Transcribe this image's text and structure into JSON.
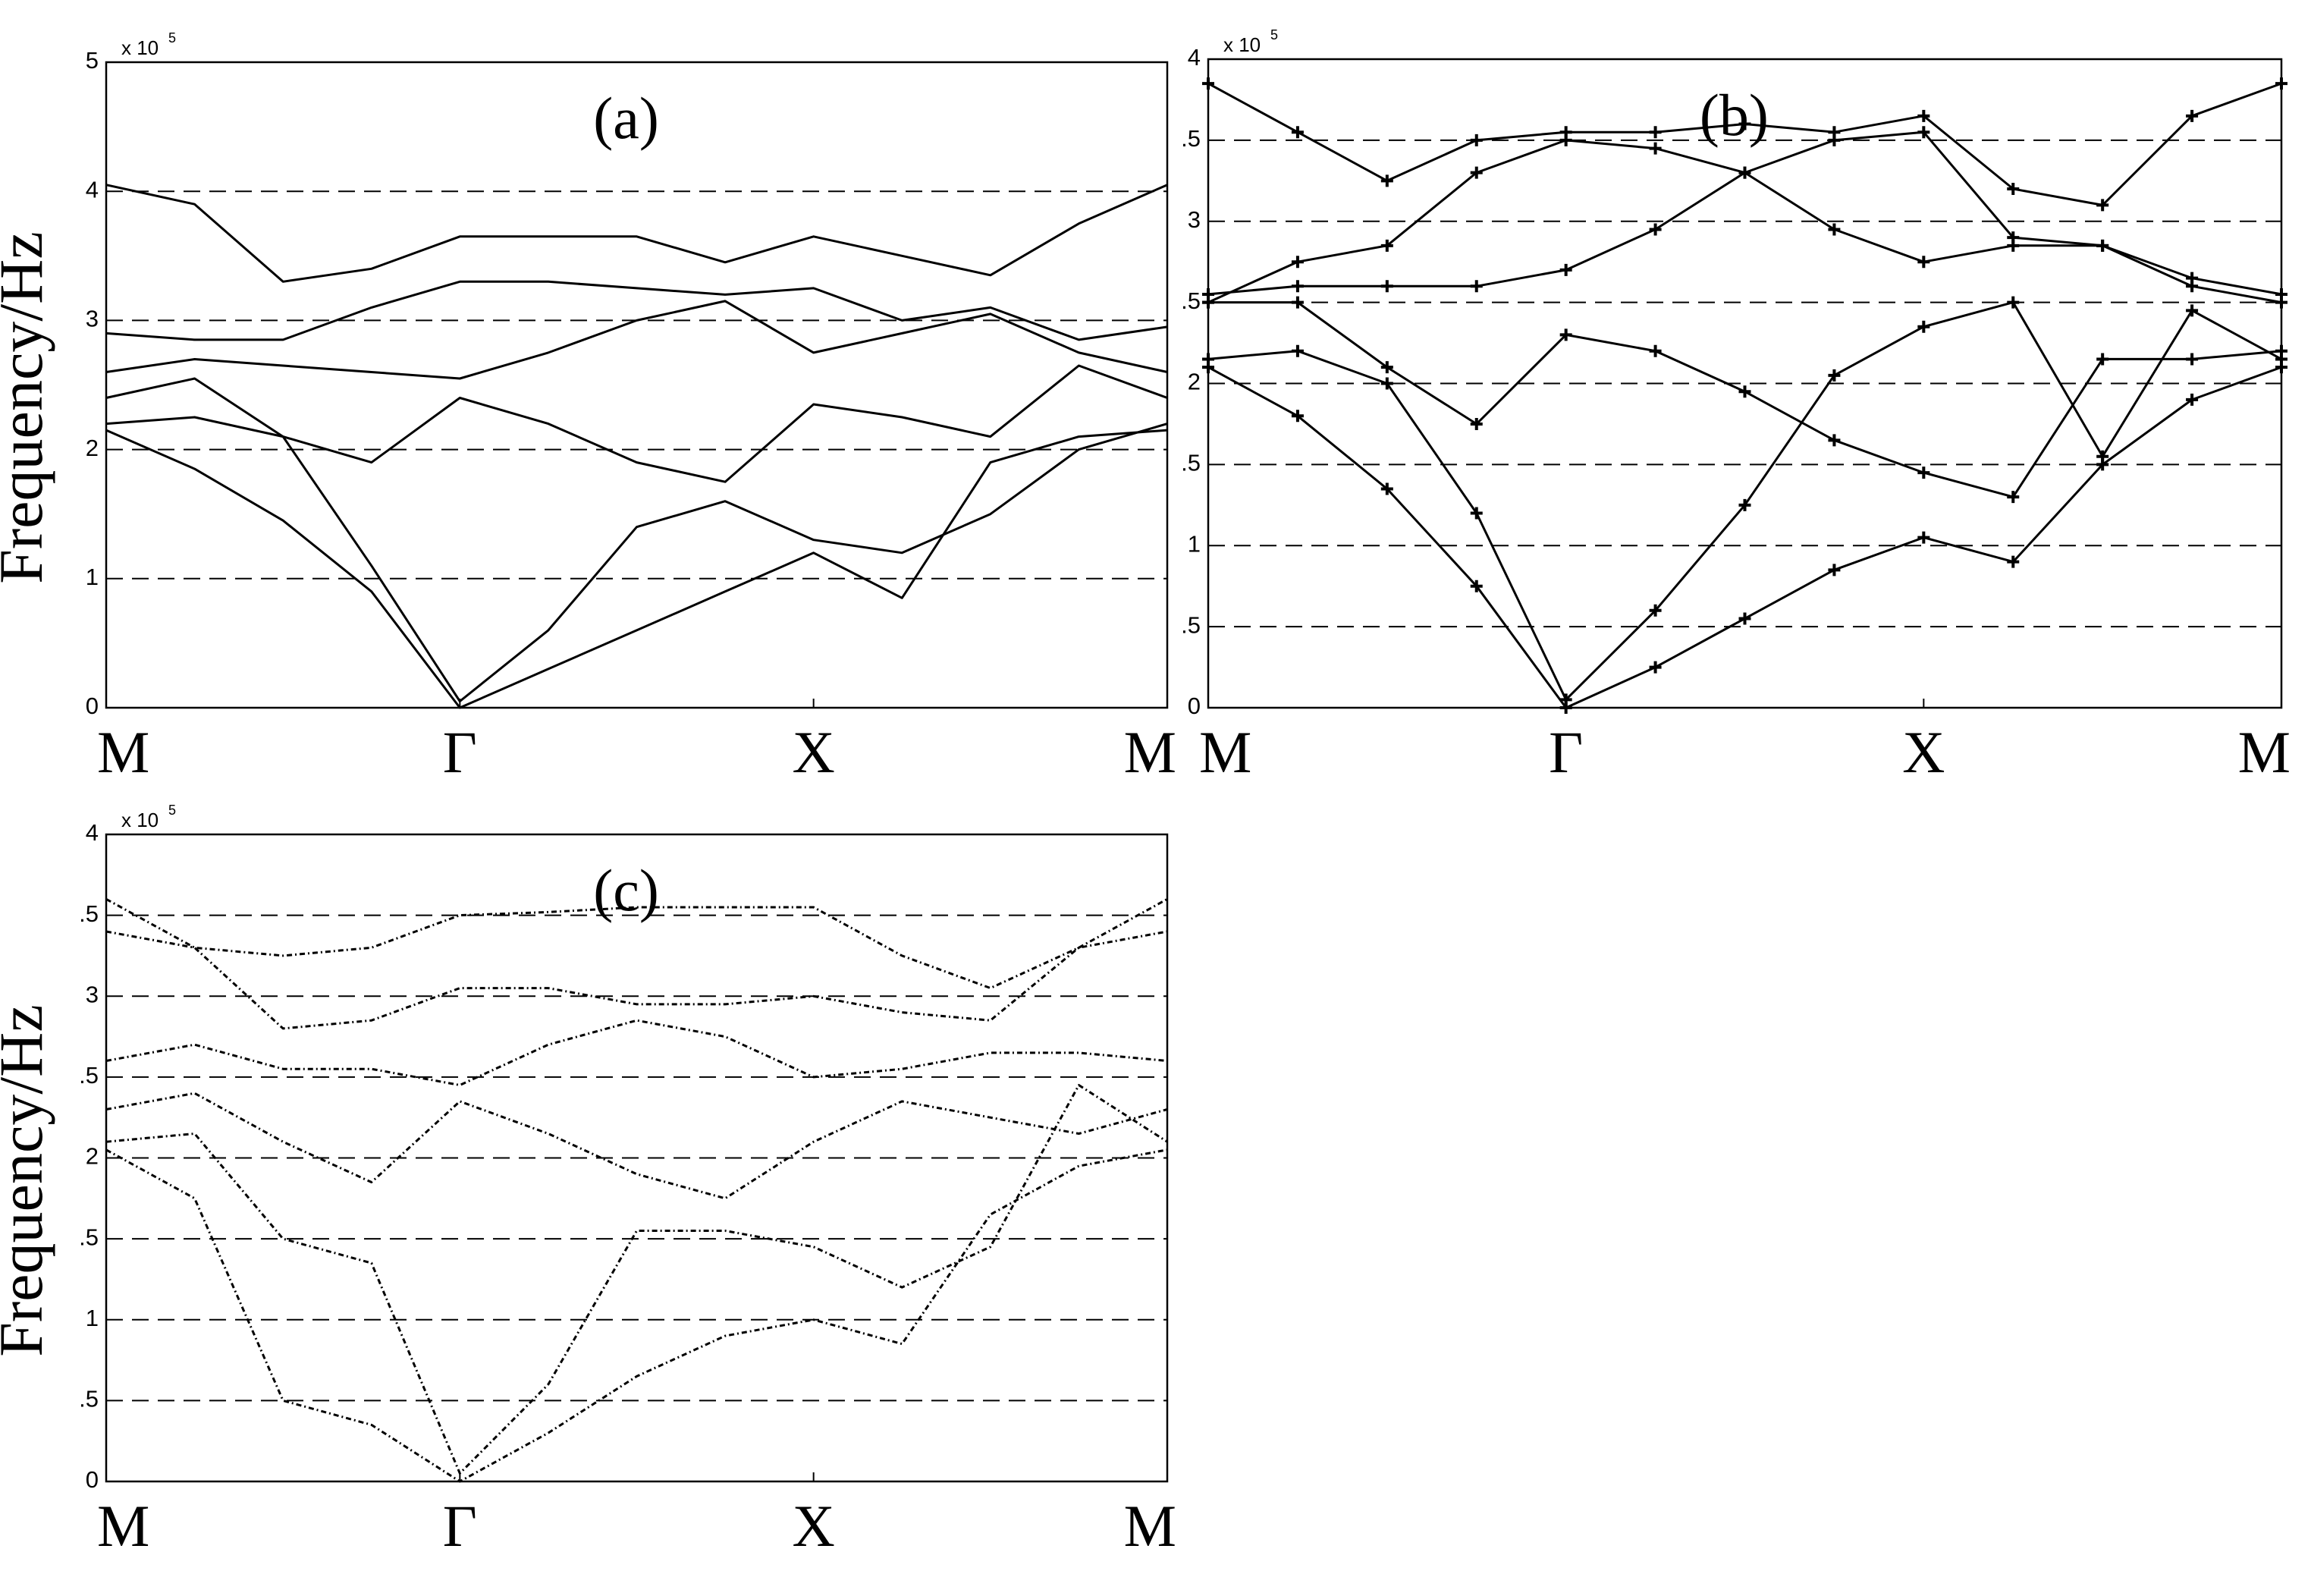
{
  "chart_data": [
    {
      "type": "line",
      "title": "(a)",
      "y_label": "Frequency/Hz",
      "exponent": "x 10",
      "exponent_power": "5",
      "line_style": "solid",
      "marker": null,
      "grid": true,
      "x": [
        0,
        0.25,
        0.5,
        0.75,
        1,
        1.25,
        1.5,
        1.75,
        2,
        2.25,
        2.5,
        2.75,
        3
      ],
      "xlim": [
        0,
        3
      ],
      "xticks": [
        {
          "value": 0,
          "label": "M"
        },
        {
          "value": 1,
          "label": "Γ"
        },
        {
          "value": 2,
          "label": "X"
        },
        {
          "value": 3,
          "label": "M"
        }
      ],
      "ylim": [
        0,
        5
      ],
      "yticks": [
        0,
        1,
        2,
        3,
        4,
        5
      ],
      "series": [
        {
          "color": "#000000",
          "values": [
            4.05,
            3.9,
            3.3,
            3.4,
            3.65,
            3.65,
            3.65,
            3.45,
            3.65,
            3.5,
            3.35,
            3.75,
            4.05
          ]
        },
        {
          "color": "#000000",
          "values": [
            2.9,
            2.85,
            2.85,
            3.1,
            3.3,
            3.3,
            3.25,
            3.2,
            3.25,
            3.0,
            3.1,
            2.85,
            2.95
          ]
        },
        {
          "color": "#000000",
          "values": [
            2.6,
            2.7,
            2.65,
            2.6,
            2.55,
            2.75,
            3.0,
            3.15,
            2.75,
            2.9,
            3.05,
            2.75,
            2.6
          ]
        },
        {
          "color": "#000000",
          "values": [
            2.4,
            2.55,
            2.1,
            1.9,
            2.4,
            2.2,
            1.9,
            1.75,
            2.35,
            2.25,
            2.1,
            2.65,
            2.4
          ]
        },
        {
          "color": "#000000",
          "values": [
            2.2,
            2.25,
            2.1,
            1.1,
            0.05,
            0.6,
            1.4,
            1.6,
            1.3,
            1.2,
            1.5,
            2.0,
            2.2
          ]
        },
        {
          "color": "#000000",
          "values": [
            2.15,
            1.85,
            1.45,
            0.9,
            0,
            0.3,
            0.6,
            0.9,
            1.2,
            0.85,
            1.9,
            2.1,
            2.15
          ]
        }
      ]
    },
    {
      "type": "line",
      "title": "(b)",
      "exponent": "x 10",
      "exponent_power": "5",
      "line_style": "solid",
      "marker": "+",
      "grid": true,
      "x": [
        0,
        0.25,
        0.5,
        0.75,
        1,
        1.25,
        1.5,
        1.75,
        2,
        2.25,
        2.5,
        2.75,
        3
      ],
      "xlim": [
        0,
        3
      ],
      "xticks": [
        {
          "value": 0,
          "label": "M"
        },
        {
          "value": 1,
          "label": "Γ"
        },
        {
          "value": 2,
          "label": "X"
        },
        {
          "value": 3,
          "label": "M"
        }
      ],
      "ylim": [
        0,
        4
      ],
      "yticks": [
        0,
        {
          "value": 0.5,
          "label": ".5"
        },
        1,
        {
          "value": 1.5,
          "label": ".5"
        },
        2,
        {
          "value": 2.5,
          "label": ".5"
        },
        3,
        {
          "value": 3.5,
          "label": ".5"
        },
        4
      ],
      "series": [
        {
          "color": "#000000",
          "values": [
            3.85,
            3.55,
            3.25,
            3.5,
            3.55,
            3.55,
            3.6,
            3.55,
            3.65,
            3.2,
            3.1,
            3.65,
            3.85
          ]
        },
        {
          "color": "#000000",
          "values": [
            2.5,
            2.75,
            2.85,
            3.3,
            3.5,
            3.45,
            3.3,
            2.95,
            2.75,
            2.85,
            2.85,
            2.65,
            2.55
          ]
        },
        {
          "color": "#000000",
          "values": [
            2.55,
            2.6,
            2.6,
            2.6,
            2.7,
            2.95,
            3.3,
            3.5,
            3.55,
            2.9,
            2.85,
            2.6,
            2.5
          ]
        },
        {
          "color": "#000000",
          "values": [
            2.5,
            2.5,
            2.1,
            1.75,
            2.3,
            2.2,
            1.95,
            1.65,
            1.45,
            1.3,
            2.15,
            2.15,
            2.2
          ]
        },
        {
          "color": "#000000",
          "values": [
            2.15,
            2.2,
            2.0,
            1.2,
            0.05,
            0.6,
            1.25,
            2.05,
            2.35,
            2.5,
            1.55,
            2.45,
            2.15
          ]
        },
        {
          "color": "#000000",
          "values": [
            2.1,
            1.8,
            1.35,
            0.75,
            0,
            0.25,
            0.55,
            0.85,
            1.05,
            0.9,
            1.5,
            1.9,
            2.1
          ]
        }
      ]
    },
    {
      "type": "line",
      "title": "(c)",
      "y_label": "Frequency/Hz",
      "exponent": "x 10",
      "exponent_power": "5",
      "line_style": "dotted",
      "marker": null,
      "grid": true,
      "x": [
        0,
        0.25,
        0.5,
        0.75,
        1,
        1.25,
        1.5,
        1.75,
        2,
        2.25,
        2.5,
        2.75,
        3
      ],
      "xlim": [
        0,
        3
      ],
      "xticks": [
        {
          "value": 0,
          "label": "M"
        },
        {
          "value": 1,
          "label": "Γ"
        },
        {
          "value": 2,
          "label": "X"
        },
        {
          "value": 3,
          "label": "M"
        }
      ],
      "ylim": [
        0,
        4
      ],
      "yticks": [
        0,
        {
          "value": 0.5,
          "label": ".5"
        },
        1,
        {
          "value": 1.5,
          "label": ".5"
        },
        2,
        {
          "value": 2.5,
          "label": ".5"
        },
        3,
        {
          "value": 3.5,
          "label": ".5"
        },
        4
      ],
      "series": [
        {
          "color": "#000000",
          "values": [
            3.6,
            3.3,
            3.25,
            3.3,
            3.5,
            3.52,
            3.55,
            3.55,
            3.55,
            3.25,
            3.05,
            3.3,
            3.6
          ]
        },
        {
          "color": "#000000",
          "values": [
            3.4,
            3.3,
            2.8,
            2.85,
            3.05,
            3.05,
            2.95,
            2.95,
            3.0,
            2.9,
            2.85,
            3.3,
            3.4
          ]
        },
        {
          "color": "#000000",
          "values": [
            2.6,
            2.7,
            2.55,
            2.55,
            2.45,
            2.7,
            2.85,
            2.75,
            2.5,
            2.55,
            2.65,
            2.65,
            2.6
          ]
        },
        {
          "color": "#000000",
          "values": [
            2.3,
            2.4,
            2.1,
            1.85,
            2.35,
            2.15,
            1.9,
            1.75,
            2.1,
            2.35,
            2.25,
            2.15,
            2.3
          ]
        },
        {
          "color": "#000000",
          "values": [
            2.1,
            2.15,
            1.5,
            1.35,
            0.05,
            0.6,
            1.55,
            1.55,
            1.45,
            1.2,
            1.45,
            2.45,
            2.1
          ]
        },
        {
          "color": "#000000",
          "values": [
            2.05,
            1.75,
            0.5,
            0.35,
            0,
            0.3,
            0.65,
            0.9,
            1.0,
            0.85,
            1.65,
            1.95,
            2.05
          ]
        }
      ]
    }
  ]
}
